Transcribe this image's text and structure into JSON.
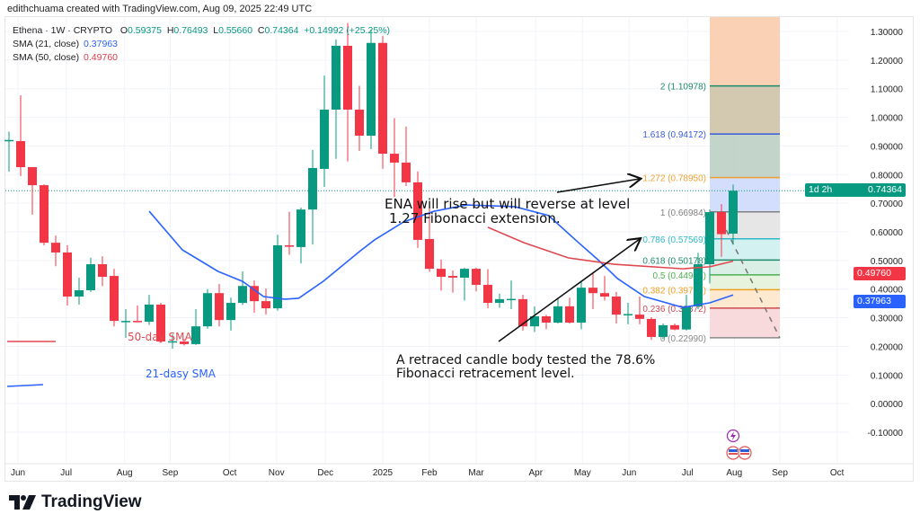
{
  "credit": "edithchuama created with TradingView.com, Aug 09, 2025 22:49 UTC",
  "legend": {
    "symbol": "Ethena · 1W · CRYPTO",
    "o_label": "O",
    "o": "0.59375",
    "h_label": "H",
    "h": "0.76493",
    "l_label": "L",
    "l": "0.55660",
    "c_label": "C",
    "c": "0.74364",
    "change": "+0.14992 (+25.25%)",
    "sma21_label": "SMA (21, close)",
    "sma21": "0.37963",
    "sma50_label": "SMA (50, close)",
    "sma50": "0.49760"
  },
  "price_tags": {
    "last": "0.74364",
    "countdown": "1d 2h",
    "sma50": "0.49760",
    "sma21": "0.37963"
  },
  "colors": {
    "up": "#089981",
    "down": "#f23645",
    "sma21": "#2962ff",
    "sma50": "#e04850"
  },
  "brand": "TradingView",
  "annotations": {
    "ena_line1": "ENA   will rise but will reverse at level",
    "ena_line2": "1.27   Fibonacci extension.",
    "retrace_line1": "A retraced candle body tested the 78.6%",
    "retrace_line2": "Fibonacci retracement level.",
    "sma50_note": "50-day SMA",
    "sma21_note": "21-dasy SMA"
  },
  "chart_data": {
    "type": "candlestick",
    "title": "Ethena · 1W · CRYPTO",
    "x_unit": "week index (0 = first visible weekly candle, late May 2024)",
    "ylim": [
      -0.16,
      1.36
    ],
    "y_ticks": [
      "1.30000",
      "1.20000",
      "1.10000",
      "1.00000",
      "0.90000",
      "0.80000",
      "0.70000",
      "0.60000",
      "0.50000",
      "0.40000",
      "0.30000",
      "0.20000",
      "0.10000",
      "0.00000",
      "-0.10000"
    ],
    "x_ticks": [
      {
        "label": "Jun",
        "week": 0.77
      },
      {
        "label": "Jul",
        "week": 4.9
      },
      {
        "label": "Aug",
        "week": 9.9
      },
      {
        "label": "Sep",
        "week": 13.8
      },
      {
        "label": "Oct",
        "week": 18.9
      },
      {
        "label": "Nov",
        "week": 22.9
      },
      {
        "label": "Dec",
        "week": 27.1
      },
      {
        "label": "2025",
        "week": 32
      },
      {
        "label": "Feb",
        "week": 36
      },
      {
        "label": "Mar",
        "week": 40
      },
      {
        "label": "Apr",
        "week": 45.1
      },
      {
        "label": "May",
        "week": 49.1
      },
      {
        "label": "Jun",
        "week": 53.1
      },
      {
        "label": "Jul",
        "week": 58.1
      },
      {
        "label": "Aug",
        "week": 62.1
      },
      {
        "label": "Sep",
        "week": 66
      },
      {
        "label": "Oct",
        "week": 70.9
      }
    ],
    "ohlc": [
      [
        0.92,
        0.95,
        0.81,
        0.921
      ],
      [
        0.917,
        1.077,
        0.795,
        0.826
      ],
      [
        0.826,
        0.826,
        0.66,
        0.763
      ],
      [
        0.763,
        0.766,
        0.553,
        0.562
      ],
      [
        0.562,
        0.587,
        0.48,
        0.528
      ],
      [
        0.528,
        0.553,
        0.343,
        0.374
      ],
      [
        0.374,
        0.44,
        0.346,
        0.396
      ],
      [
        0.396,
        0.51,
        0.39,
        0.487
      ],
      [
        0.487,
        0.515,
        0.41,
        0.443
      ],
      [
        0.446,
        0.471,
        0.27,
        0.289
      ],
      [
        0.285,
        0.33,
        0.23,
        0.289
      ],
      [
        0.289,
        0.343,
        0.285,
        0.286
      ],
      [
        0.286,
        0.38,
        0.275,
        0.346
      ],
      [
        0.346,
        0.352,
        0.215,
        0.217
      ],
      [
        0.217,
        0.242,
        0.192,
        0.218
      ],
      [
        0.217,
        0.225,
        0.203,
        0.208
      ],
      [
        0.208,
        0.33,
        0.205,
        0.27
      ],
      [
        0.27,
        0.4,
        0.262,
        0.386
      ],
      [
        0.386,
        0.418,
        0.27,
        0.292
      ],
      [
        0.292,
        0.37,
        0.255,
        0.352
      ],
      [
        0.352,
        0.462,
        0.345,
        0.411
      ],
      [
        0.411,
        0.43,
        0.318,
        0.358
      ],
      [
        0.358,
        0.402,
        0.311,
        0.333
      ],
      [
        0.333,
        0.59,
        0.325,
        0.553
      ],
      [
        0.553,
        0.67,
        0.52,
        0.548
      ],
      [
        0.547,
        0.685,
        0.49,
        0.678
      ],
      [
        0.678,
        0.886,
        0.556,
        0.823
      ],
      [
        0.82,
        1.146,
        0.757,
        1.027
      ],
      [
        1.027,
        1.272,
        0.855,
        1.25
      ],
      [
        1.25,
        1.33,
        0.846,
        1.027
      ],
      [
        1.027,
        1.11,
        0.883,
        0.936
      ],
      [
        0.936,
        1.307,
        0.889,
        1.26
      ],
      [
        1.26,
        1.284,
        0.82,
        0.873
      ],
      [
        0.873,
        0.997,
        0.722,
        0.842
      ],
      [
        0.842,
        0.968,
        0.76,
        0.773
      ],
      [
        0.773,
        0.811,
        0.544,
        0.572
      ],
      [
        0.575,
        0.692,
        0.46,
        0.471
      ],
      [
        0.471,
        0.503,
        0.395,
        0.443
      ],
      [
        0.446,
        0.465,
        0.388,
        0.44
      ],
      [
        0.44,
        0.475,
        0.36,
        0.471
      ],
      [
        0.471,
        0.475,
        0.392,
        0.415
      ],
      [
        0.415,
        0.47,
        0.333,
        0.352
      ],
      [
        0.352,
        0.384,
        0.335,
        0.365
      ],
      [
        0.364,
        0.43,
        0.33,
        0.366
      ],
      [
        0.365,
        0.38,
        0.255,
        0.27
      ],
      [
        0.27,
        0.34,
        0.25,
        0.305
      ],
      [
        0.305,
        0.31,
        0.26,
        0.283
      ],
      [
        0.283,
        0.37,
        0.28,
        0.34
      ],
      [
        0.34,
        0.37,
        0.28,
        0.283
      ],
      [
        0.283,
        0.43,
        0.26,
        0.405
      ],
      [
        0.405,
        0.46,
        0.33,
        0.386
      ],
      [
        0.386,
        0.446,
        0.36,
        0.374
      ],
      [
        0.374,
        0.39,
        0.28,
        0.311
      ],
      [
        0.311,
        0.352,
        0.277,
        0.313
      ],
      [
        0.311,
        0.374,
        0.277,
        0.296
      ],
      [
        0.296,
        0.302,
        0.223,
        0.233
      ],
      [
        0.233,
        0.28,
        0.225,
        0.274
      ],
      [
        0.274,
        0.28,
        0.256,
        0.259
      ],
      [
        0.259,
        0.38,
        0.255,
        0.34
      ],
      [
        0.34,
        0.527,
        0.33,
        0.487
      ],
      [
        0.487,
        0.678,
        0.42,
        0.669
      ],
      [
        0.669,
        0.697,
        0.513,
        0.592
      ],
      [
        0.59375,
        0.76493,
        0.5566,
        0.74364
      ]
    ],
    "series": [
      {
        "name": "SMA (21, close)",
        "points": [
          [
            12,
            0.672
          ],
          [
            14.85,
            0.537
          ],
          [
            17.9,
            0.462
          ],
          [
            20,
            0.427
          ],
          [
            21.8,
            0.374
          ],
          [
            23.6,
            0.365
          ],
          [
            24.8,
            0.368
          ],
          [
            26.9,
            0.427
          ],
          [
            30,
            0.531
          ],
          [
            31.3,
            0.572
          ],
          [
            33.8,
            0.635
          ],
          [
            36.4,
            0.672
          ],
          [
            39.2,
            0.694
          ],
          [
            43.3,
            0.688
          ],
          [
            46.2,
            0.657
          ],
          [
            48.5,
            0.572
          ],
          [
            50.5,
            0.5
          ],
          [
            52.1,
            0.437
          ],
          [
            54.4,
            0.374
          ],
          [
            57.7,
            0.336
          ],
          [
            60,
            0.352
          ],
          [
            62,
            0.3796
          ]
        ]
      },
      {
        "name": "SMA (50, close)",
        "points": [
          [
            41,
            0.616
          ],
          [
            44.1,
            0.562
          ],
          [
            47.9,
            0.509
          ],
          [
            51.8,
            0.487
          ],
          [
            57.7,
            0.471
          ],
          [
            60,
            0.478
          ],
          [
            62,
            0.4976
          ]
        ]
      }
    ],
    "fib": {
      "start_week": 60,
      "end_week": 66,
      "levels": [
        {
          "label": "0 (0.22990)",
          "value": 0.2299,
          "color": "#8a8a8a",
          "fill": "#f8d3d6"
        },
        {
          "label": "0.236 (0.33372)",
          "value": 0.33372,
          "color": "#d04a50",
          "fill": "#fde4c8"
        },
        {
          "label": "0.382 (0.39796)",
          "value": 0.39796,
          "color": "#f0a020",
          "fill": "#e4f1d8"
        },
        {
          "label": "0.5 (0.44987)",
          "value": 0.44987,
          "color": "#4caf50",
          "fill": "#d3ece0"
        },
        {
          "label": "0.618 (0.50178)",
          "value": 0.50178,
          "color": "#1f8a6a",
          "fill": "#cdeff0"
        },
        {
          "label": "0.786 (0.57569)",
          "value": 0.57569,
          "color": "#30b8c8",
          "fill": "#e2e2e2"
        },
        {
          "label": "1 (0.66984)",
          "value": 0.66984,
          "color": "#808080",
          "fill": "#cbd8fb"
        },
        {
          "label": "1.272 (0.78950)",
          "value": 0.7895,
          "color": "#f0a030",
          "fill": "#b8cdc1"
        },
        {
          "label": "1.618 (0.94172)",
          "value": 0.94172,
          "color": "#3a5bd9",
          "fill": "#cbc0a3"
        },
        {
          "label": "2 (1.10978)",
          "value": 1.10978,
          "color": "#1c8a6a",
          "fill": "#f9c9a8"
        }
      ]
    }
  }
}
